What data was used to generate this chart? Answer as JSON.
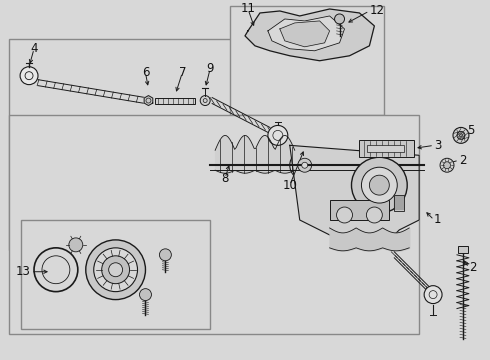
{
  "fig_width": 4.9,
  "fig_height": 3.6,
  "dpi": 100,
  "bg_color": "#d8d8d8",
  "box_bg": "#e0e0e0",
  "line_color": "#1a1a1a",
  "label_color": "#111111",
  "label_fontsize": 7.5
}
